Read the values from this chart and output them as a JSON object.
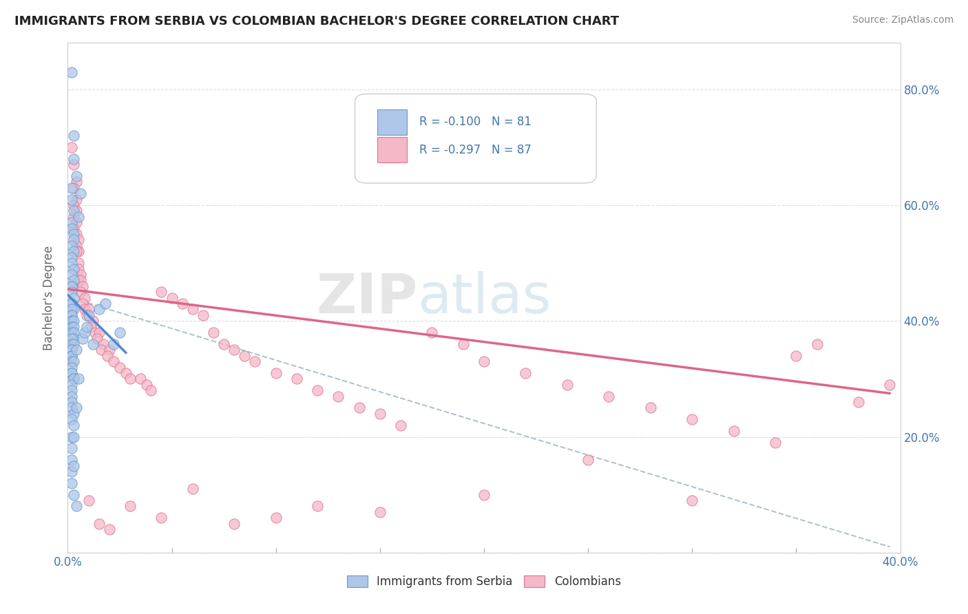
{
  "title": "IMMIGRANTS FROM SERBIA VS COLOMBIAN BACHELOR'S DEGREE CORRELATION CHART",
  "source_text": "Source: ZipAtlas.com",
  "ylabel_text": "Bachelor's Degree",
  "x_min": 0.0,
  "x_max": 0.4,
  "y_min": 0.0,
  "y_max": 0.88,
  "x_ticks": [
    0.0,
    0.1,
    0.2,
    0.3,
    0.4
  ],
  "x_tick_labels": [
    "0.0%",
    "",
    "",
    "",
    "40.0%"
  ],
  "y_ticks": [
    0.0,
    0.2,
    0.4,
    0.6,
    0.8
  ],
  "y_tick_labels_right": [
    "",
    "20.0%",
    "40.0%",
    "60.0%",
    "80.0%"
  ],
  "legend_R1": "-0.100",
  "legend_N1": "81",
  "legend_R2": "-0.297",
  "legend_N2": "87",
  "serbia_color": "#aec6e8",
  "colombia_color": "#f4b8c8",
  "serbia_edge": "#6699cc",
  "colombia_edge": "#e07090",
  "trendline_serbia_color": "#5588cc",
  "trendline_colombia_color": "#dd6688",
  "dashed_line_color": "#aabbcc",
  "background_color": "#ffffff",
  "axis_color": "#4477aa",
  "watermark_zip": "ZIP",
  "watermark_atlas": "atlas",
  "serbia_x": [
    0.002,
    0.003,
    0.003,
    0.004,
    0.002,
    0.002,
    0.003,
    0.002,
    0.002,
    0.003,
    0.003,
    0.002,
    0.003,
    0.002,
    0.002,
    0.003,
    0.002,
    0.003,
    0.002,
    0.002,
    0.002,
    0.003,
    0.002,
    0.002,
    0.003,
    0.002,
    0.002,
    0.002,
    0.002,
    0.002,
    0.003,
    0.002,
    0.003,
    0.002,
    0.003,
    0.003,
    0.002,
    0.002,
    0.003,
    0.002,
    0.002,
    0.002,
    0.002,
    0.002,
    0.003,
    0.002,
    0.002,
    0.002,
    0.003,
    0.003,
    0.002,
    0.002,
    0.002,
    0.002,
    0.002,
    0.003,
    0.002,
    0.003,
    0.002,
    0.002,
    0.002,
    0.002,
    0.002,
    0.007,
    0.01,
    0.008,
    0.012,
    0.015,
    0.009,
    0.018,
    0.022,
    0.025,
    0.005,
    0.006,
    0.004,
    0.005,
    0.004,
    0.003,
    0.003,
    0.003,
    0.004
  ],
  "serbia_y": [
    0.83,
    0.72,
    0.68,
    0.65,
    0.63,
    0.61,
    0.59,
    0.57,
    0.56,
    0.55,
    0.54,
    0.53,
    0.52,
    0.51,
    0.5,
    0.49,
    0.48,
    0.47,
    0.46,
    0.46,
    0.45,
    0.44,
    0.43,
    0.43,
    0.42,
    0.42,
    0.41,
    0.41,
    0.4,
    0.4,
    0.4,
    0.39,
    0.39,
    0.38,
    0.38,
    0.37,
    0.37,
    0.36,
    0.36,
    0.35,
    0.35,
    0.34,
    0.34,
    0.33,
    0.33,
    0.32,
    0.31,
    0.31,
    0.3,
    0.3,
    0.29,
    0.28,
    0.27,
    0.26,
    0.25,
    0.24,
    0.23,
    0.22,
    0.2,
    0.18,
    0.16,
    0.14,
    0.12,
    0.37,
    0.41,
    0.38,
    0.36,
    0.42,
    0.39,
    0.43,
    0.36,
    0.38,
    0.58,
    0.62,
    0.35,
    0.3,
    0.25,
    0.2,
    0.15,
    0.1,
    0.08
  ],
  "colombia_x": [
    0.002,
    0.003,
    0.004,
    0.003,
    0.004,
    0.003,
    0.004,
    0.003,
    0.004,
    0.003,
    0.004,
    0.005,
    0.004,
    0.005,
    0.004,
    0.005,
    0.005,
    0.006,
    0.005,
    0.006,
    0.007,
    0.006,
    0.008,
    0.007,
    0.008,
    0.01,
    0.009,
    0.012,
    0.011,
    0.013,
    0.015,
    0.014,
    0.017,
    0.016,
    0.02,
    0.019,
    0.022,
    0.025,
    0.028,
    0.03,
    0.035,
    0.038,
    0.04,
    0.045,
    0.05,
    0.055,
    0.06,
    0.065,
    0.07,
    0.075,
    0.08,
    0.085,
    0.09,
    0.1,
    0.11,
    0.12,
    0.13,
    0.14,
    0.15,
    0.16,
    0.175,
    0.19,
    0.2,
    0.22,
    0.24,
    0.26,
    0.28,
    0.3,
    0.32,
    0.34,
    0.35,
    0.36,
    0.38,
    0.395,
    0.3,
    0.25,
    0.2,
    0.15,
    0.12,
    0.1,
    0.08,
    0.06,
    0.045,
    0.03,
    0.02,
    0.015,
    0.01
  ],
  "colombia_y": [
    0.7,
    0.67,
    0.64,
    0.63,
    0.61,
    0.6,
    0.59,
    0.58,
    0.57,
    0.56,
    0.55,
    0.54,
    0.53,
    0.52,
    0.52,
    0.5,
    0.49,
    0.48,
    0.47,
    0.47,
    0.46,
    0.45,
    0.44,
    0.43,
    0.42,
    0.42,
    0.41,
    0.4,
    0.39,
    0.38,
    0.38,
    0.37,
    0.36,
    0.35,
    0.35,
    0.34,
    0.33,
    0.32,
    0.31,
    0.3,
    0.3,
    0.29,
    0.28,
    0.45,
    0.44,
    0.43,
    0.42,
    0.41,
    0.38,
    0.36,
    0.35,
    0.34,
    0.33,
    0.31,
    0.3,
    0.28,
    0.27,
    0.25,
    0.24,
    0.22,
    0.38,
    0.36,
    0.33,
    0.31,
    0.29,
    0.27,
    0.25,
    0.23,
    0.21,
    0.19,
    0.34,
    0.36,
    0.26,
    0.29,
    0.09,
    0.16,
    0.1,
    0.07,
    0.08,
    0.06,
    0.05,
    0.11,
    0.06,
    0.08,
    0.04,
    0.05,
    0.09
  ],
  "serbia_trend_x": [
    0.0,
    0.028
  ],
  "serbia_trend_y": [
    0.445,
    0.345
  ],
  "colombia_trend_x": [
    0.0,
    0.395
  ],
  "colombia_trend_y": [
    0.455,
    0.275
  ],
  "dashed_trend_x": [
    0.006,
    0.395
  ],
  "dashed_trend_y": [
    0.435,
    0.01
  ]
}
